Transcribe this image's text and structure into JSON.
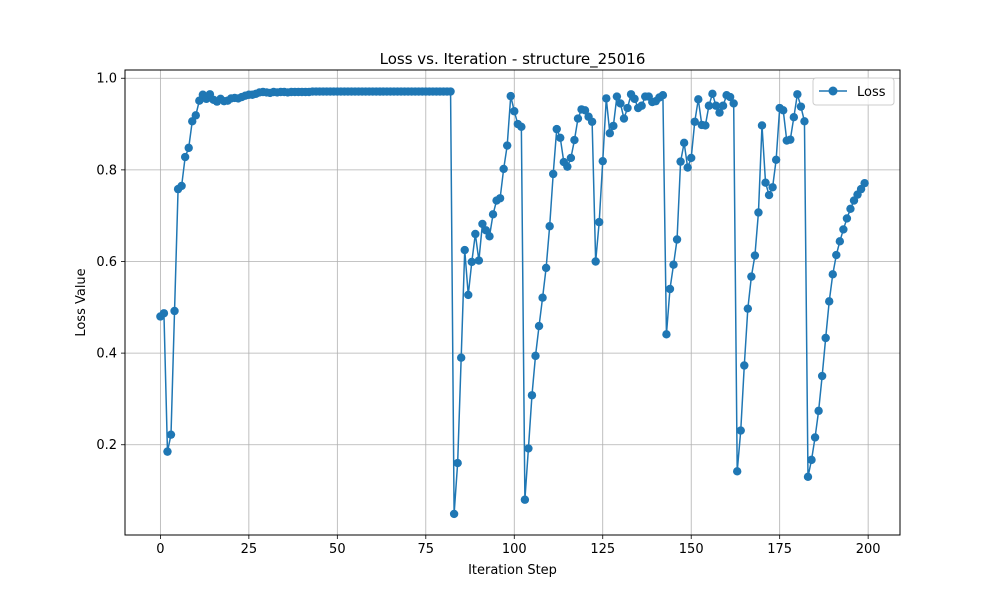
{
  "chart_data": {
    "type": "line",
    "title": "Loss vs. Iteration - structure_25016",
    "xlabel": "Iteration Step",
    "ylabel": "Loss Value",
    "xlim": [
      -10,
      209
    ],
    "ylim": [
      0.003,
      1.018
    ],
    "xticks": [
      0,
      25,
      50,
      75,
      100,
      125,
      150,
      175,
      200
    ],
    "yticks": [
      0.2,
      0.4,
      0.6,
      0.8,
      1.0
    ],
    "xtick_labels": [
      "0",
      "25",
      "50",
      "75",
      "100",
      "125",
      "150",
      "175",
      "200"
    ],
    "ytick_labels": [
      "0.2",
      "0.4",
      "0.6",
      "0.8",
      "1.0"
    ],
    "grid": true,
    "legend_position": "top-right",
    "colors": {
      "series": "#1f77b4",
      "grid": "#b0b0b0",
      "axis": "#000000"
    },
    "series": [
      {
        "name": "Loss",
        "marker": "circle",
        "x": [
          0,
          1,
          2,
          3,
          4,
          5,
          6,
          7,
          8,
          9,
          10,
          11,
          12,
          13,
          14,
          15,
          16,
          17,
          18,
          19,
          20,
          21,
          22,
          23,
          24,
          25,
          26,
          27,
          28,
          29,
          30,
          31,
          32,
          33,
          34,
          35,
          36,
          37,
          38,
          39,
          40,
          41,
          42,
          43,
          44,
          45,
          46,
          47,
          48,
          49,
          50,
          51,
          52,
          53,
          54,
          55,
          56,
          57,
          58,
          59,
          60,
          61,
          62,
          63,
          64,
          65,
          66,
          67,
          68,
          69,
          70,
          71,
          72,
          73,
          74,
          75,
          76,
          77,
          78,
          79,
          80,
          81,
          82,
          83,
          84,
          85,
          86,
          87,
          88,
          89,
          90,
          91,
          92,
          93,
          94,
          95,
          96,
          97,
          98,
          99,
          100,
          101,
          102,
          103,
          104,
          105,
          106,
          107,
          108,
          109,
          110,
          111,
          112,
          113,
          114,
          115,
          116,
          117,
          118,
          119,
          120,
          121,
          122,
          123,
          124,
          125,
          126,
          127,
          128,
          129,
          130,
          131,
          132,
          133,
          134,
          135,
          136,
          137,
          138,
          139,
          140,
          141,
          142,
          143,
          144,
          145,
          146,
          147,
          148,
          149,
          150,
          151,
          152,
          153,
          154,
          155,
          156,
          157,
          158,
          159,
          160,
          161,
          162,
          163,
          164,
          165,
          166,
          167,
          168,
          169,
          170,
          171,
          172,
          173,
          174,
          175,
          176,
          177,
          178,
          179,
          180,
          181,
          182,
          183,
          184,
          185,
          186,
          187,
          188,
          189,
          190,
          191,
          192,
          193,
          194,
          195,
          196,
          197,
          198,
          199
        ],
        "values": [
          0.48,
          0.487,
          0.185,
          0.222,
          0.492,
          0.758,
          0.765,
          0.828,
          0.848,
          0.906,
          0.919,
          0.951,
          0.964,
          0.955,
          0.965,
          0.953,
          0.949,
          0.955,
          0.95,
          0.951,
          0.956,
          0.957,
          0.956,
          0.959,
          0.962,
          0.964,
          0.964,
          0.966,
          0.969,
          0.97,
          0.969,
          0.968,
          0.97,
          0.969,
          0.97,
          0.97,
          0.969,
          0.97,
          0.97,
          0.97,
          0.97,
          0.97,
          0.97,
          0.971,
          0.971,
          0.971,
          0.971,
          0.971,
          0.971,
          0.971,
          0.971,
          0.971,
          0.971,
          0.971,
          0.971,
          0.971,
          0.971,
          0.971,
          0.971,
          0.971,
          0.971,
          0.971,
          0.971,
          0.971,
          0.971,
          0.971,
          0.971,
          0.971,
          0.971,
          0.971,
          0.971,
          0.971,
          0.971,
          0.971,
          0.971,
          0.971,
          0.971,
          0.971,
          0.971,
          0.971,
          0.971,
          0.971,
          0.971,
          0.049,
          0.16,
          0.39,
          0.625,
          0.527,
          0.599,
          0.66,
          0.602,
          0.682,
          0.668,
          0.655,
          0.703,
          0.733,
          0.738,
          0.802,
          0.853,
          0.961,
          0.928,
          0.9,
          0.894,
          0.08,
          0.192,
          0.308,
          0.394,
          0.459,
          0.521,
          0.586,
          0.677,
          0.791,
          0.889,
          0.87,
          0.817,
          0.807,
          0.826,
          0.865,
          0.912,
          0.932,
          0.93,
          0.916,
          0.905,
          0.6,
          0.686,
          0.819,
          0.956,
          0.88,
          0.896,
          0.96,
          0.945,
          0.912,
          0.935,
          0.965,
          0.955,
          0.935,
          0.94,
          0.96,
          0.96,
          0.948,
          0.95,
          0.958,
          0.963,
          0.441,
          0.54,
          0.593,
          0.648,
          0.818,
          0.859,
          0.805,
          0.826,
          0.905,
          0.954,
          0.898,
          0.897,
          0.94,
          0.966,
          0.94,
          0.925,
          0.94,
          0.963,
          0.959,
          0.945,
          0.142,
          0.231,
          0.373,
          0.497,
          0.567,
          0.613,
          0.707,
          0.897,
          0.772,
          0.745,
          0.762,
          0.822,
          0.935,
          0.93,
          0.864,
          0.866,
          0.915,
          0.965,
          0.938,
          0.906,
          0.13,
          0.167,
          0.216,
          0.274,
          0.35,
          0.433,
          0.513,
          0.572,
          0.614,
          0.644,
          0.67,
          0.694,
          0.715,
          0.733,
          0.746,
          0.758,
          0.771
        ]
      }
    ]
  }
}
